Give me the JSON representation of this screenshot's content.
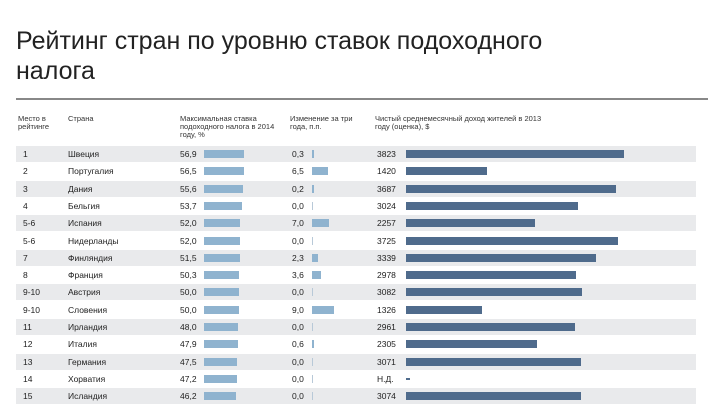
{
  "title": "Рейтинг стран по уровню ставок подоходного налога",
  "chart_data": {
    "type": "table",
    "title": "Рейтинг стран по уровню ставок подоходного налога",
    "columns": {
      "rank": "Место в рейтинге",
      "country": "Страна",
      "rate": "Максимальная ставка подоходного налога в 2014 году, %",
      "change": "Изменение за три года, п.п.",
      "income": "Чистый среднемесячный доход жителей в 2013 году (оценка), $"
    },
    "rows": [
      {
        "rank": "1",
        "country": "Швеция",
        "rate": "56,9",
        "rate_v": 56.9,
        "change": "0,3",
        "change_v": 0.3,
        "income": "3823",
        "income_v": 3823
      },
      {
        "rank": "2",
        "country": "Португалия",
        "rate": "56,5",
        "rate_v": 56.5,
        "change": "6,5",
        "change_v": 6.5,
        "income": "1420",
        "income_v": 1420
      },
      {
        "rank": "3",
        "country": "Дания",
        "rate": "55,6",
        "rate_v": 55.6,
        "change": "0,2",
        "change_v": 0.2,
        "income": "3687",
        "income_v": 3687
      },
      {
        "rank": "4",
        "country": "Бельгия",
        "rate": "53,7",
        "rate_v": 53.7,
        "change": "0,0",
        "change_v": 0.0,
        "income": "3024",
        "income_v": 3024
      },
      {
        "rank": "5-6",
        "country": "Испания",
        "rate": "52,0",
        "rate_v": 52.0,
        "change": "7,0",
        "change_v": 7.0,
        "income": "2257",
        "income_v": 2257
      },
      {
        "rank": "5-6",
        "country": "Нидерланды",
        "rate": "52,0",
        "rate_v": 52.0,
        "change": "0,0",
        "change_v": 0.0,
        "income": "3725",
        "income_v": 3725
      },
      {
        "rank": "7",
        "country": "Финляндия",
        "rate": "51,5",
        "rate_v": 51.5,
        "change": "2,3",
        "change_v": 2.3,
        "income": "3339",
        "income_v": 3339
      },
      {
        "rank": "8",
        "country": "Франция",
        "rate": "50,3",
        "rate_v": 50.3,
        "change": "3,6",
        "change_v": 3.6,
        "income": "2978",
        "income_v": 2978
      },
      {
        "rank": "9-10",
        "country": "Австрия",
        "rate": "50,0",
        "rate_v": 50.0,
        "change": "0,0",
        "change_v": 0.0,
        "income": "3082",
        "income_v": 3082
      },
      {
        "rank": "9-10",
        "country": "Словения",
        "rate": "50,0",
        "rate_v": 50.0,
        "change": "9,0",
        "change_v": 9.0,
        "income": "1326",
        "income_v": 1326
      },
      {
        "rank": "11",
        "country": "Ирландия",
        "rate": "48,0",
        "rate_v": 48.0,
        "change": "0,0",
        "change_v": 0.0,
        "income": "2961",
        "income_v": 2961
      },
      {
        "rank": "12",
        "country": "Италия",
        "rate": "47,9",
        "rate_v": 47.9,
        "change": "0,6",
        "change_v": 0.6,
        "income": "2305",
        "income_v": 2305
      },
      {
        "rank": "13",
        "country": "Германия",
        "rate": "47,5",
        "rate_v": 47.5,
        "change": "0,0",
        "change_v": 0.0,
        "income": "3071",
        "income_v": 3071
      },
      {
        "rank": "14",
        "country": "Хорватия",
        "rate": "47,2",
        "rate_v": 47.2,
        "change": "0,0",
        "change_v": 0.0,
        "income": "Н.Д.",
        "income_v": null
      },
      {
        "rank": "15",
        "country": "Исландия",
        "rate": "46,2",
        "rate_v": 46.2,
        "change": "0,0",
        "change_v": 0.0,
        "income": "3074",
        "income_v": 3074
      }
    ],
    "bar_color_light": "#8fb3cf",
    "bar_color_dark": "#4f6b8c"
  }
}
